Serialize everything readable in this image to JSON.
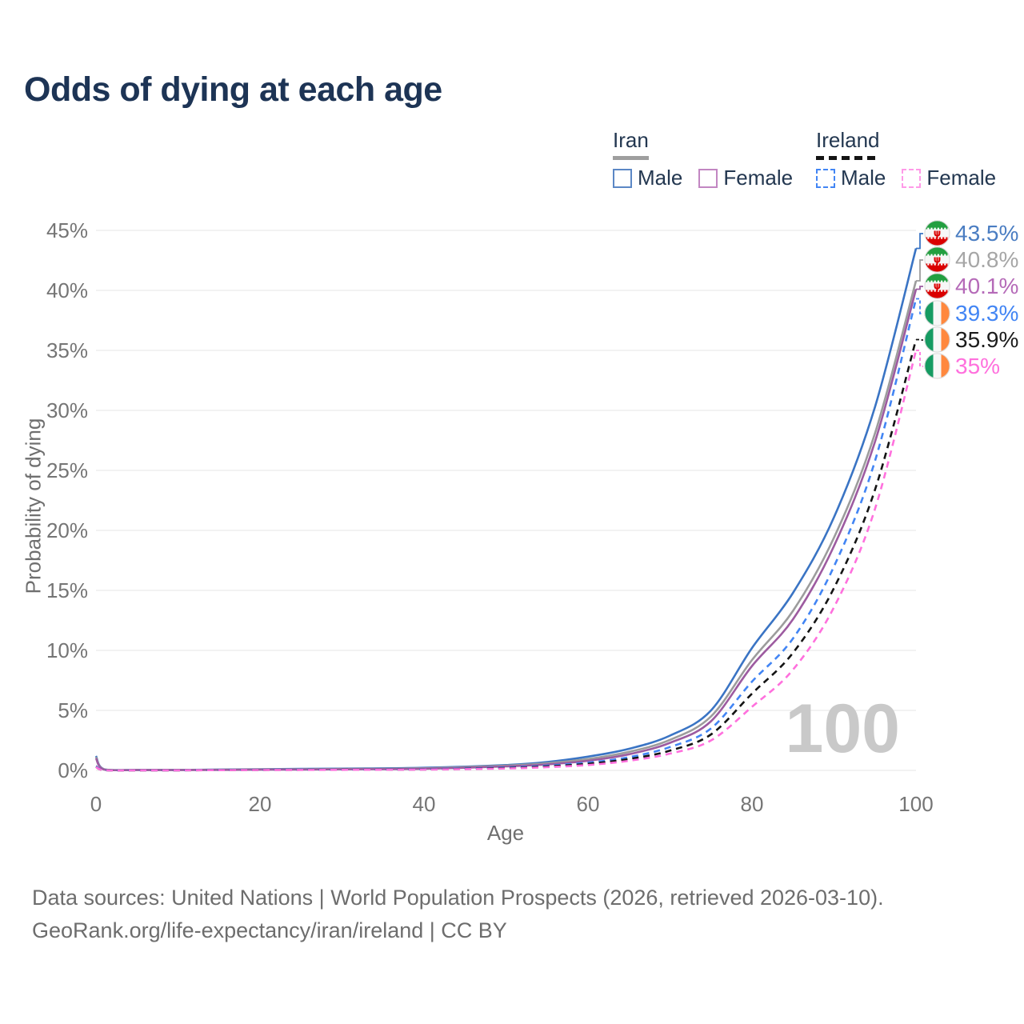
{
  "title": "Odds of dying at each age",
  "legend": {
    "groups": [
      {
        "name": "Iran",
        "line_style": "solid",
        "underline_color": "#9e9e9e",
        "items": [
          {
            "label": "Male",
            "swatch_color": "#5b87c5",
            "dashed": false
          },
          {
            "label": "Female",
            "swatch_color": "#c286c2",
            "dashed": false
          }
        ]
      },
      {
        "name": "Ireland",
        "line_style": "dashed",
        "underline_color": "#141414",
        "items": [
          {
            "label": "Male",
            "swatch_color": "#4285f4",
            "dashed": true
          },
          {
            "label": "Female",
            "swatch_color": "#ff9ae8",
            "dashed": true
          }
        ]
      }
    ]
  },
  "watermark": "100",
  "footer": {
    "line1": "Data sources: United Nations | World Population Prospects (2026, retrieved 2026-03-10).",
    "line2": "GeoRank.org/life-expectancy/iran/ireland | CC BY"
  },
  "flags": {
    "iran": {
      "green": "#239f40",
      "white": "#f7f7f7",
      "red": "#da0000"
    },
    "ireland": {
      "green": "#169b62",
      "white": "#f7f7f7",
      "orange": "#ff883e"
    }
  },
  "chart_data": {
    "type": "line",
    "title": "Odds of dying at each age",
    "xlabel": "Age",
    "ylabel": "Probability of dying",
    "xlim": [
      0,
      100
    ],
    "ylim": [
      0,
      45
    ],
    "x_ticks": [
      0,
      20,
      40,
      60,
      80,
      100
    ],
    "y_ticks": [
      0,
      5,
      10,
      15,
      20,
      25,
      30,
      35,
      40,
      45
    ],
    "y_tick_suffix": "%",
    "grid": "horizontal",
    "x": [
      0,
      1,
      5,
      10,
      20,
      30,
      40,
      50,
      55,
      60,
      65,
      70,
      75,
      80,
      85,
      90,
      95,
      100
    ],
    "series": [
      {
        "name": "Iran Male",
        "color": "#3a74c4",
        "dashed": false,
        "values": [
          1.2,
          0.09,
          0.04,
          0.04,
          0.1,
          0.15,
          0.22,
          0.45,
          0.7,
          1.15,
          1.8,
          2.9,
          5.0,
          10.2,
          14.8,
          21.1,
          30.3,
          43.5
        ]
      },
      {
        "name": "Iran",
        "color": "#9c9c9c",
        "dashed": false,
        "values": [
          1.1,
          0.08,
          0.035,
          0.035,
          0.08,
          0.12,
          0.18,
          0.4,
          0.6,
          0.95,
          1.55,
          2.55,
          4.5,
          9.2,
          13.3,
          19.4,
          28.1,
          40.8
        ]
      },
      {
        "name": "Iran Female",
        "color": "#9d5ba0",
        "dashed": false,
        "values": [
          1.0,
          0.07,
          0.03,
          0.03,
          0.06,
          0.09,
          0.14,
          0.33,
          0.5,
          0.8,
          1.35,
          2.3,
          4.1,
          8.7,
          12.6,
          18.7,
          27.4,
          40.1
        ]
      },
      {
        "name": "Ireland Male",
        "color": "#4285f4",
        "dashed": true,
        "values": [
          0.35,
          0.03,
          0.012,
          0.012,
          0.05,
          0.07,
          0.1,
          0.25,
          0.4,
          0.65,
          1.1,
          1.95,
          3.5,
          7.4,
          11.0,
          17.0,
          25.8,
          39.3
        ]
      },
      {
        "name": "Ireland",
        "color": "#141414",
        "dashed": true,
        "values": [
          0.3,
          0.025,
          0.01,
          0.01,
          0.04,
          0.06,
          0.08,
          0.2,
          0.33,
          0.55,
          0.95,
          1.65,
          3.0,
          6.4,
          9.8,
          15.2,
          23.4,
          35.9
        ]
      },
      {
        "name": "Ireland Female",
        "color": "#ff70dd",
        "dashed": true,
        "values": [
          0.28,
          0.02,
          0.01,
          0.01,
          0.03,
          0.05,
          0.07,
          0.16,
          0.27,
          0.45,
          0.8,
          1.4,
          2.5,
          5.3,
          8.4,
          13.6,
          21.8,
          35.0
        ]
      }
    ],
    "end_labels": [
      {
        "series": "Iran Male",
        "text": "43.5%",
        "color": "#4a7dc2",
        "flag": "iran"
      },
      {
        "series": "Iran",
        "text": "40.8%",
        "color": "#a6a6a6",
        "flag": "iran"
      },
      {
        "series": "Iran Female",
        "text": "40.1%",
        "color": "#b56ab8",
        "flag": "iran"
      },
      {
        "series": "Ireland Male",
        "text": "39.3%",
        "color": "#4285f4",
        "flag": "ireland"
      },
      {
        "series": "Ireland",
        "text": "35.9%",
        "color": "#1b1b1b",
        "flag": "ireland"
      },
      {
        "series": "Ireland Female",
        "text": "35%",
        "color": "#ff70dd",
        "flag": "ireland"
      }
    ],
    "legend_position": "top-right"
  }
}
